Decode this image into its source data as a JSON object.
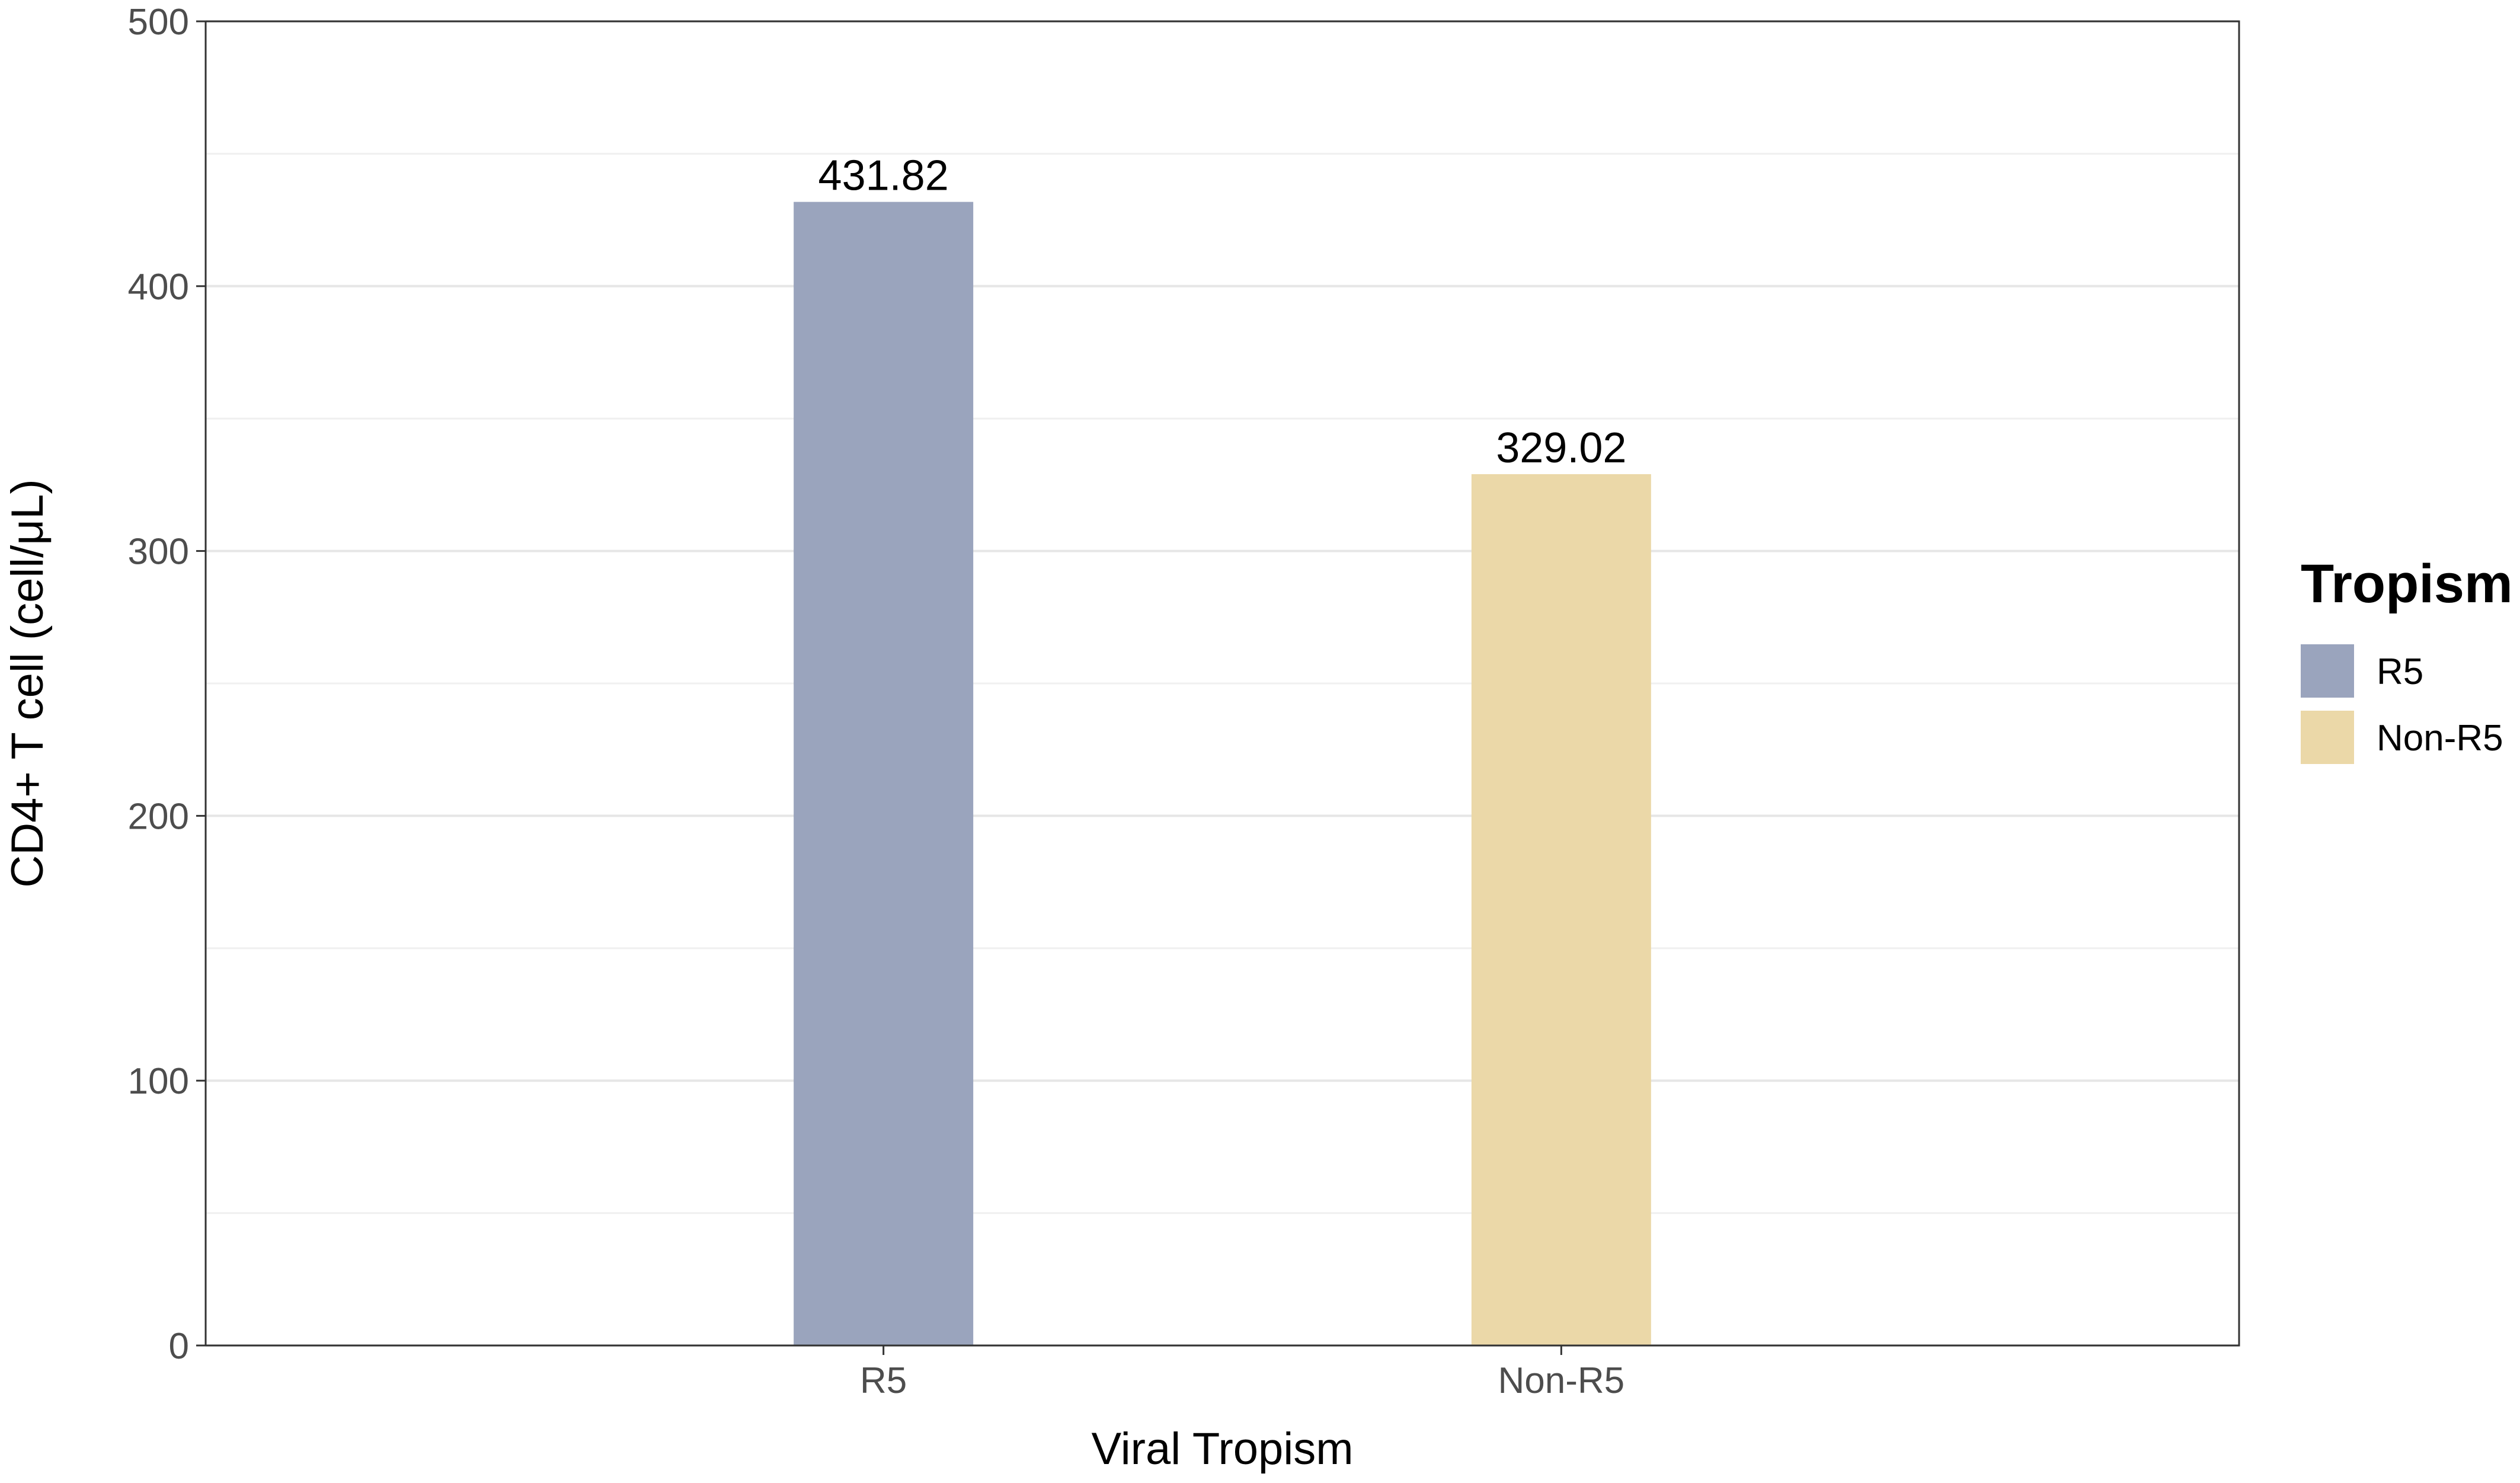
{
  "chart_data": {
    "type": "bar",
    "categories": [
      "R5",
      "Non-R5"
    ],
    "values": [
      431.82,
      329.02
    ],
    "data_labels": [
      "431.82",
      "329.02"
    ],
    "colors": [
      "#9aa4bd",
      "#ebd8a8"
    ],
    "title": "",
    "xlabel": "Viral Tropism",
    "ylabel": "CD4+ T cell (cell/μL)",
    "ylim": [
      0,
      500
    ],
    "yticks": [
      0,
      100,
      200,
      300,
      400,
      500
    ],
    "ytick_labels": [
      "0",
      "100",
      "200",
      "300",
      "400",
      "500"
    ],
    "grid": true,
    "legend": {
      "title": "Tropism",
      "placement": "right",
      "entries": [
        {
          "label": "R5",
          "color": "#9aa4bd"
        },
        {
          "label": "Non-R5",
          "color": "#ebd8a8"
        }
      ]
    }
  }
}
